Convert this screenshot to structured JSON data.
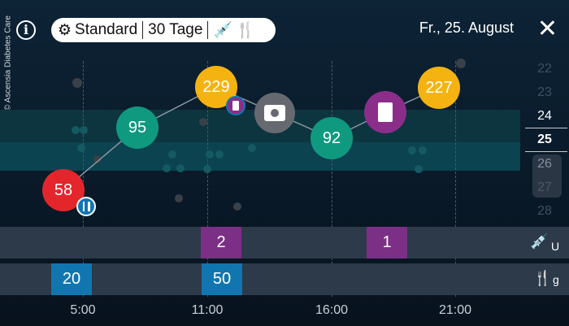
{
  "copyright": "© Ascensia Diabetes Care",
  "header": {
    "mode": "Standard",
    "range": "30 Tage",
    "date": "Fr., 25. August",
    "icons": [
      "info-icon",
      "gear-icon",
      "syringe-icon",
      "cutlery-icon",
      "close-icon"
    ]
  },
  "readings": [
    {
      "value": "58",
      "time": "5:00",
      "color": "#e3262c",
      "badge": "cutlery"
    },
    {
      "value": "95",
      "color": "#0f9a80"
    },
    {
      "value": "229",
      "color": "#f4b311",
      "badge": "note"
    },
    {
      "value": "",
      "type": "photo",
      "color": "#666a70"
    },
    {
      "value": "92",
      "color": "#0f9a80"
    },
    {
      "value": "",
      "type": "note",
      "color": "#8a2e8a"
    },
    {
      "value": "227",
      "color": "#f4b311"
    }
  ],
  "day_picker": {
    "days": [
      "22",
      "23",
      "24",
      "25",
      "26",
      "27",
      "28"
    ],
    "selected": "25"
  },
  "insulin": {
    "unit": "U",
    "entries": [
      "2",
      "1"
    ],
    "color": "#7b2f85"
  },
  "carbs": {
    "unit": "g",
    "entries": [
      "20",
      "50"
    ],
    "color": "#1176b0"
  },
  "time_axis": [
    "5:00",
    "11:00",
    "16:00",
    "21:00"
  ]
}
